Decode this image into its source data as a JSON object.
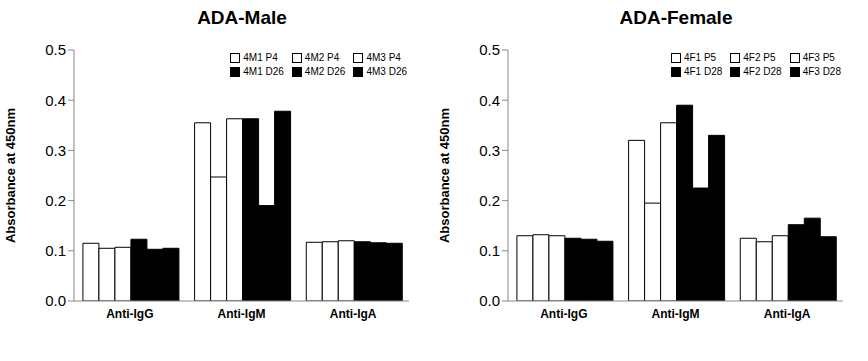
{
  "chart_data": [
    {
      "type": "bar",
      "title": "ADA-Male",
      "y_label": "Absorbance at 450nm",
      "categories": [
        "Anti-IgG",
        "Anti-IgM",
        "Anti-IgA"
      ],
      "series": [
        {
          "name": "4M1 P4",
          "color": "#ffffff",
          "values": [
            0.115,
            0.355,
            0.117
          ]
        },
        {
          "name": "4M2 P4",
          "color": "#ffffff",
          "values": [
            0.105,
            0.247,
            0.118
          ]
        },
        {
          "name": "4M3 P4",
          "color": "#ffffff",
          "values": [
            0.107,
            0.363,
            0.12
          ]
        },
        {
          "name": "4M1 D26",
          "color": "#000000",
          "values": [
            0.123,
            0.363,
            0.118
          ]
        },
        {
          "name": "4M2 D26",
          "color": "#000000",
          "values": [
            0.103,
            0.19,
            0.116
          ]
        },
        {
          "name": "4M3 D26",
          "color": "#000000",
          "values": [
            0.105,
            0.378,
            0.115
          ]
        }
      ],
      "ylim": [
        0,
        0.5
      ],
      "yticks": [
        {
          "value": 0,
          "label": "0.0"
        },
        0.1,
        0.2,
        0.3,
        0.4,
        0.5
      ],
      "grid": false,
      "legend": "top-right"
    },
    {
      "type": "bar",
      "title": "ADA-Female",
      "y_label": "Absorbance at 450nm",
      "categories": [
        "Anti-IgG",
        "Anti-IgM",
        "Anti-IgA"
      ],
      "series": [
        {
          "name": "4F1 P5",
          "color": "#ffffff",
          "values": [
            0.13,
            0.32,
            0.125
          ]
        },
        {
          "name": "4F2 P5",
          "color": "#ffffff",
          "values": [
            0.132,
            0.195,
            0.118
          ]
        },
        {
          "name": "4F3 P5",
          "color": "#ffffff",
          "values": [
            0.13,
            0.355,
            0.13
          ]
        },
        {
          "name": "4F1 D28",
          "color": "#000000",
          "values": [
            0.125,
            0.39,
            0.152
          ]
        },
        {
          "name": "4F2 D28",
          "color": "#000000",
          "values": [
            0.123,
            0.225,
            0.165
          ]
        },
        {
          "name": "4F3 D28",
          "color": "#000000",
          "values": [
            0.119,
            0.33,
            0.128
          ]
        }
      ],
      "ylim": [
        0,
        0.5
      ],
      "yticks": [
        {
          "value": 0,
          "label": "0.0"
        },
        0.1,
        0.2,
        0.3,
        0.4,
        0.5
      ],
      "grid": false,
      "legend": "top-right"
    }
  ]
}
